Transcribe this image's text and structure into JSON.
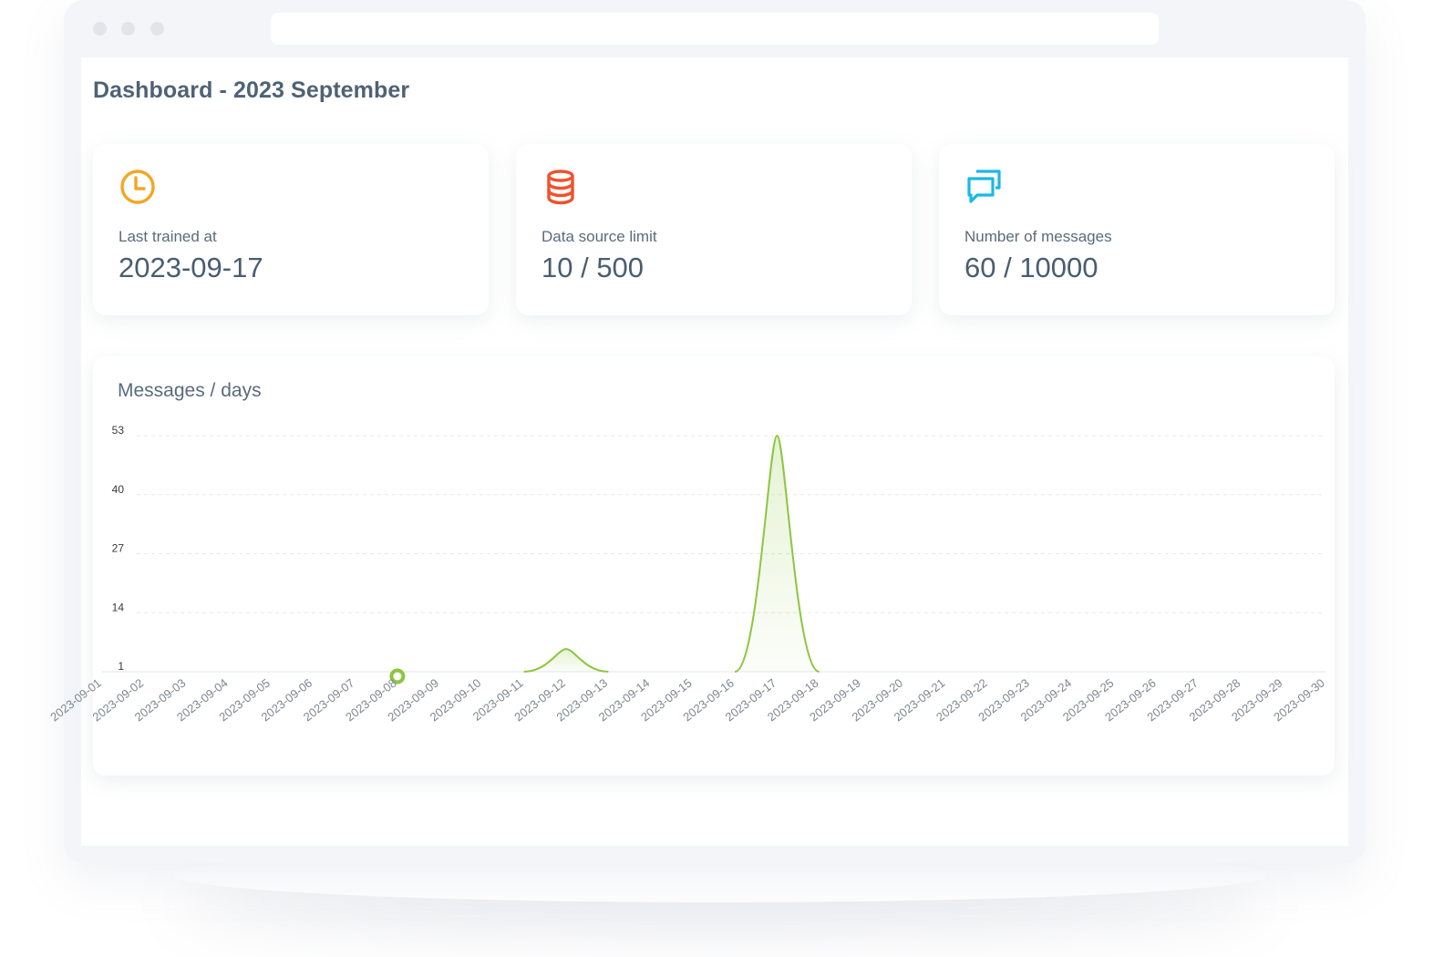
{
  "header": {
    "title": "Dashboard - 2023 September"
  },
  "stats": [
    {
      "label": "Last trained at",
      "value": "2023-09-17",
      "icon": "clock-icon",
      "color": "#f5a623"
    },
    {
      "label": "Data source limit",
      "value": "10 / 500",
      "icon": "database-icon",
      "color": "#f0522d"
    },
    {
      "label": "Number of messages",
      "value": "60 / 10000",
      "icon": "chat-bubbles-icon",
      "color": "#1ab8e6"
    }
  ],
  "colors": {
    "accent": "#8cc63f",
    "text": "#4f6275"
  },
  "chart_data": {
    "type": "area",
    "title": "Messages / days",
    "x": [
      "2023-09-01",
      "2023-09-02",
      "2023-09-03",
      "2023-09-04",
      "2023-09-05",
      "2023-09-06",
      "2023-09-07",
      "2023-09-08",
      "2023-09-09",
      "2023-09-10",
      "2023-09-11",
      "2023-09-12",
      "2023-09-13",
      "2023-09-14",
      "2023-09-15",
      "2023-09-16",
      "2023-09-17",
      "2023-09-18",
      "2023-09-19",
      "2023-09-20",
      "2023-09-21",
      "2023-09-22",
      "2023-09-23",
      "2023-09-24",
      "2023-09-25",
      "2023-09-26",
      "2023-09-27",
      "2023-09-28",
      "2023-09-29",
      "2023-09-30"
    ],
    "values": [
      0,
      0,
      0,
      0,
      0,
      0,
      0,
      0,
      0,
      0,
      0,
      6,
      0,
      0,
      0,
      0,
      53,
      0,
      0,
      0,
      0,
      0,
      0,
      0,
      0,
      0,
      0,
      0,
      0,
      0
    ],
    "yticks": [
      1,
      14,
      27,
      40,
      53
    ],
    "ylim": [
      1,
      53
    ],
    "highlight_index": 7,
    "grid": true,
    "color": "#8cc63f"
  }
}
